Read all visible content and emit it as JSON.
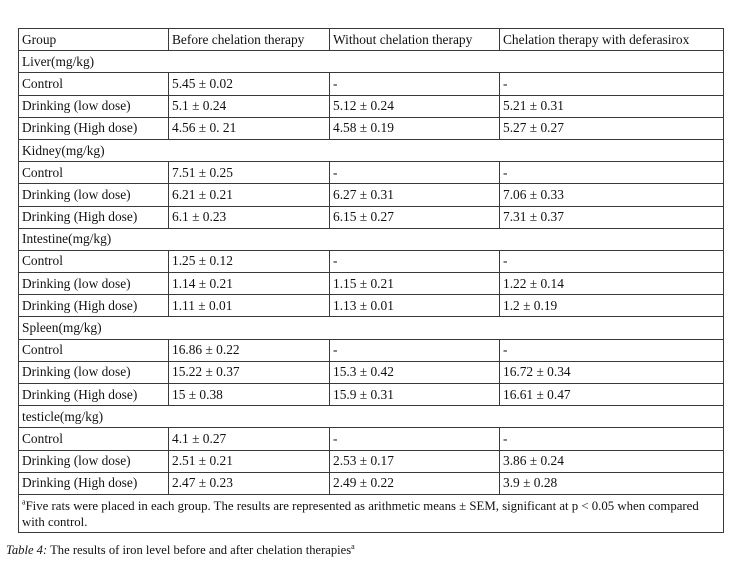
{
  "table": {
    "headers": [
      "Group",
      "Before chelation therapy",
      "Without chelation therapy",
      "Chelation therapy with deferasirox"
    ],
    "sections": [
      {
        "title": "Liver(mg/kg)",
        "rows": [
          [
            "Control",
            "5.45 ± 0.02",
            "-",
            "-"
          ],
          [
            "Drinking (low dose)",
            "5.1 ± 0.24",
            "5.12 ± 0.24",
            "5.21 ± 0.31"
          ],
          [
            "Drinking (High dose)",
            "4.56 ± 0. 21",
            "4.58 ± 0.19",
            "5.27 ± 0.27"
          ]
        ]
      },
      {
        "title": "Kidney(mg/kg)",
        "rows": [
          [
            "Control",
            "7.51 ± 0.25",
            "-",
            "-"
          ],
          [
            "Drinking (low dose)",
            "6.21 ± 0.21",
            "6.27 ± 0.31",
            "7.06 ± 0.33"
          ],
          [
            "Drinking (High dose)",
            "6.1 ± 0.23",
            "6.15 ± 0.27",
            "7.31 ± 0.37"
          ]
        ]
      },
      {
        "title": "Intestine(mg/kg)",
        "rows": [
          [
            "Control",
            "1.25 ± 0.12",
            "-",
            "-"
          ],
          [
            "Drinking (low dose)",
            "1.14 ± 0.21",
            "1.15 ± 0.21",
            "1.22 ± 0.14"
          ],
          [
            "Drinking (High dose)",
            "1.11 ± 0.01",
            "1.13 ± 0.01",
            "1.2 ± 0.19"
          ]
        ]
      },
      {
        "title": "Spleen(mg/kg)",
        "rows": [
          [
            "Control",
            "16.86 ± 0.22",
            "-",
            "-"
          ],
          [
            "Drinking (low dose)",
            "15.22 ± 0.37",
            "15.3 ± 0.42",
            "16.72 ± 0.34"
          ],
          [
            "Drinking (High dose)",
            "15 ± 0.38",
            "15.9 ± 0.31",
            "16.61 ± 0.47"
          ]
        ]
      },
      {
        "title": "testicle(mg/kg)",
        "rows": [
          [
            "Control",
            "4.1 ± 0.27",
            "-",
            "-"
          ],
          [
            "Drinking (low dose)",
            "2.51 ± 0.21",
            "2.53 ± 0.17",
            "3.86 ± 0.24"
          ],
          [
            "Drinking (High dose)",
            "2.47 ± 0.23",
            "2.49 ± 0.22",
            "3.9 ± 0.28"
          ]
        ]
      }
    ],
    "footnote_marker": "a",
    "footnote": "Five rats were placed in each group. The results are represented as arithmetic means ± SEM, significant  at  p < 0.05 when compared with control."
  },
  "caption": {
    "label": "Table 4:",
    "text": " The results of iron level before and after chelation therapies",
    "marker": "a"
  }
}
